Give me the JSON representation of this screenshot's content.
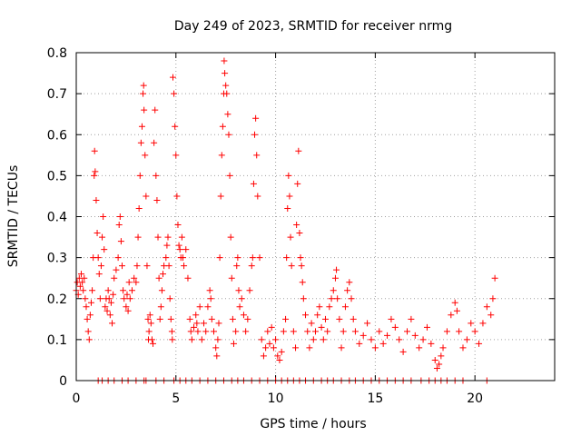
{
  "chart_data": {
    "type": "scatter",
    "title": "Day 249 of 2023, SRMTID for receiver nrmg",
    "xlabel": "GPS time / hours",
    "ylabel": "SRMTID / TECUs",
    "xlim": [
      0,
      24
    ],
    "ylim": [
      0,
      0.8
    ],
    "xticks": [
      0,
      5,
      10,
      15,
      20
    ],
    "yticks": [
      0,
      0.1,
      0.2,
      0.3,
      0.4,
      0.5,
      0.6,
      0.7,
      0.8
    ],
    "grid": true,
    "marker": "+",
    "color": "#ff0000",
    "series": [
      {
        "name": "SRMTID",
        "points": [
          [
            0.0,
            0.22
          ],
          [
            0.05,
            0.24
          ],
          [
            0.1,
            0.21
          ],
          [
            0.15,
            0.25
          ],
          [
            0.2,
            0.23
          ],
          [
            0.25,
            0.26
          ],
          [
            0.3,
            0.24
          ],
          [
            0.35,
            0.22
          ],
          [
            0.4,
            0.25
          ],
          [
            0.45,
            0.2
          ],
          [
            0.5,
            0.18
          ],
          [
            0.55,
            0.15
          ],
          [
            0.6,
            0.12
          ],
          [
            0.65,
            0.1
          ],
          [
            0.7,
            0.16
          ],
          [
            0.75,
            0.19
          ],
          [
            0.8,
            0.22
          ],
          [
            0.85,
            0.3
          ],
          [
            0.9,
            0.5
          ],
          [
            0.92,
            0.56
          ],
          [
            0.95,
            0.51
          ],
          [
            1.0,
            0.44
          ],
          [
            1.05,
            0.36
          ],
          [
            1.1,
            0.3
          ],
          [
            1.15,
            0.26
          ],
          [
            1.2,
            0.2
          ],
          [
            1.25,
            0.28
          ],
          [
            1.3,
            0.35
          ],
          [
            1.35,
            0.4
          ],
          [
            1.4,
            0.32
          ],
          [
            1.45,
            0.18
          ],
          [
            1.5,
            0.2
          ],
          [
            1.55,
            0.17
          ],
          [
            1.6,
            0.22
          ],
          [
            1.65,
            0.2
          ],
          [
            1.7,
            0.16
          ],
          [
            1.75,
            0.19
          ],
          [
            1.8,
            0.14
          ],
          [
            1.85,
            0.21
          ],
          [
            1.9,
            0.25
          ],
          [
            2.0,
            0.27
          ],
          [
            2.1,
            0.3
          ],
          [
            2.15,
            0.38
          ],
          [
            2.2,
            0.4
          ],
          [
            2.25,
            0.34
          ],
          [
            2.3,
            0.28
          ],
          [
            2.35,
            0.22
          ],
          [
            2.4,
            0.2
          ],
          [
            2.5,
            0.18
          ],
          [
            2.55,
            0.21
          ],
          [
            2.6,
            0.17
          ],
          [
            2.65,
            0.24
          ],
          [
            2.7,
            0.2
          ],
          [
            2.8,
            0.22
          ],
          [
            2.9,
            0.25
          ],
          [
            3.0,
            0.24
          ],
          [
            3.05,
            0.28
          ],
          [
            3.1,
            0.35
          ],
          [
            3.15,
            0.42
          ],
          [
            3.2,
            0.5
          ],
          [
            3.25,
            0.58
          ],
          [
            3.3,
            0.62
          ],
          [
            3.35,
            0.7
          ],
          [
            3.38,
            0.72
          ],
          [
            3.4,
            0.66
          ],
          [
            3.45,
            0.55
          ],
          [
            3.5,
            0.45
          ],
          [
            3.55,
            0.28
          ],
          [
            3.6,
            0.15
          ],
          [
            3.62,
            0.1
          ],
          [
            3.65,
            0.12
          ],
          [
            3.7,
            0.16
          ],
          [
            3.75,
            0.14
          ],
          [
            3.8,
            0.1
          ],
          [
            3.85,
            0.09
          ],
          [
            3.9,
            0.58
          ],
          [
            3.95,
            0.66
          ],
          [
            4.0,
            0.5
          ],
          [
            4.05,
            0.44
          ],
          [
            4.1,
            0.35
          ],
          [
            4.15,
            0.25
          ],
          [
            4.2,
            0.15
          ],
          [
            4.25,
            0.18
          ],
          [
            4.3,
            0.22
          ],
          [
            4.35,
            0.26
          ],
          [
            4.4,
            0.28
          ],
          [
            4.5,
            0.3
          ],
          [
            4.55,
            0.33
          ],
          [
            4.6,
            0.35
          ],
          [
            4.65,
            0.28
          ],
          [
            4.7,
            0.2
          ],
          [
            4.75,
            0.15
          ],
          [
            4.8,
            0.12
          ],
          [
            4.82,
            0.1
          ],
          [
            4.85,
            0.74
          ],
          [
            4.9,
            0.7
          ],
          [
            4.95,
            0.62
          ],
          [
            5.0,
            0.55
          ],
          [
            5.05,
            0.45
          ],
          [
            5.1,
            0.38
          ],
          [
            5.15,
            0.33
          ],
          [
            5.2,
            0.32
          ],
          [
            5.25,
            0.3
          ],
          [
            5.3,
            0.35
          ],
          [
            5.35,
            0.3
          ],
          [
            5.4,
            0.28
          ],
          [
            5.5,
            0.32
          ],
          [
            5.6,
            0.25
          ],
          [
            5.7,
            0.15
          ],
          [
            5.75,
            0.12
          ],
          [
            5.8,
            0.1
          ],
          [
            5.9,
            0.13
          ],
          [
            6.0,
            0.16
          ],
          [
            6.05,
            0.14
          ],
          [
            6.1,
            0.12
          ],
          [
            6.2,
            0.18
          ],
          [
            6.3,
            0.1
          ],
          [
            6.4,
            0.14
          ],
          [
            6.5,
            0.12
          ],
          [
            6.6,
            0.18
          ],
          [
            6.7,
            0.22
          ],
          [
            6.75,
            0.2
          ],
          [
            6.8,
            0.15
          ],
          [
            6.9,
            0.12
          ],
          [
            7.0,
            0.08
          ],
          [
            7.05,
            0.06
          ],
          [
            7.1,
            0.1
          ],
          [
            7.15,
            0.14
          ],
          [
            7.2,
            0.3
          ],
          [
            7.25,
            0.45
          ],
          [
            7.3,
            0.55
          ],
          [
            7.35,
            0.62
          ],
          [
            7.4,
            0.7
          ],
          [
            7.42,
            0.78
          ],
          [
            7.45,
            0.75
          ],
          [
            7.5,
            0.72
          ],
          [
            7.55,
            0.7
          ],
          [
            7.6,
            0.65
          ],
          [
            7.65,
            0.6
          ],
          [
            7.7,
            0.5
          ],
          [
            7.75,
            0.35
          ],
          [
            7.8,
            0.25
          ],
          [
            7.85,
            0.15
          ],
          [
            7.9,
            0.09
          ],
          [
            8.0,
            0.12
          ],
          [
            8.05,
            0.28
          ],
          [
            8.1,
            0.3
          ],
          [
            8.15,
            0.22
          ],
          [
            8.2,
            0.18
          ],
          [
            8.3,
            0.2
          ],
          [
            8.4,
            0.16
          ],
          [
            8.5,
            0.12
          ],
          [
            8.6,
            0.15
          ],
          [
            8.7,
            0.22
          ],
          [
            8.8,
            0.28
          ],
          [
            8.85,
            0.3
          ],
          [
            8.9,
            0.48
          ],
          [
            8.95,
            0.6
          ],
          [
            9.0,
            0.64
          ],
          [
            9.05,
            0.55
          ],
          [
            9.1,
            0.45
          ],
          [
            9.2,
            0.3
          ],
          [
            9.3,
            0.1
          ],
          [
            9.4,
            0.06
          ],
          [
            9.5,
            0.08
          ],
          [
            9.6,
            0.12
          ],
          [
            9.7,
            0.09
          ],
          [
            9.8,
            0.13
          ],
          [
            9.9,
            0.08
          ],
          [
            10.0,
            0.1
          ],
          [
            10.1,
            0.06
          ],
          [
            10.2,
            0.05
          ],
          [
            10.3,
            0.07
          ],
          [
            10.4,
            0.12
          ],
          [
            10.5,
            0.15
          ],
          [
            10.55,
            0.3
          ],
          [
            10.6,
            0.42
          ],
          [
            10.65,
            0.5
          ],
          [
            10.7,
            0.45
          ],
          [
            10.75,
            0.35
          ],
          [
            10.8,
            0.28
          ],
          [
            10.9,
            0.12
          ],
          [
            11.0,
            0.08
          ],
          [
            11.05,
            0.38
          ],
          [
            11.1,
            0.48
          ],
          [
            11.15,
            0.56
          ],
          [
            11.2,
            0.36
          ],
          [
            11.25,
            0.3
          ],
          [
            11.3,
            0.28
          ],
          [
            11.35,
            0.24
          ],
          [
            11.4,
            0.2
          ],
          [
            11.5,
            0.16
          ],
          [
            11.6,
            0.12
          ],
          [
            11.7,
            0.08
          ],
          [
            11.8,
            0.14
          ],
          [
            11.9,
            0.1
          ],
          [
            12.0,
            0.12
          ],
          [
            12.1,
            0.16
          ],
          [
            12.2,
            0.18
          ],
          [
            12.3,
            0.13
          ],
          [
            12.4,
            0.1
          ],
          [
            12.5,
            0.15
          ],
          [
            12.6,
            0.12
          ],
          [
            12.7,
            0.18
          ],
          [
            12.8,
            0.2
          ],
          [
            12.9,
            0.22
          ],
          [
            13.0,
            0.25
          ],
          [
            13.05,
            0.27
          ],
          [
            13.1,
            0.2
          ],
          [
            13.2,
            0.15
          ],
          [
            13.3,
            0.08
          ],
          [
            13.4,
            0.12
          ],
          [
            13.5,
            0.18
          ],
          [
            13.6,
            0.22
          ],
          [
            13.7,
            0.24
          ],
          [
            13.8,
            0.2
          ],
          [
            13.9,
            0.15
          ],
          [
            14.0,
            0.12
          ],
          [
            14.2,
            0.09
          ],
          [
            14.4,
            0.11
          ],
          [
            14.6,
            0.14
          ],
          [
            14.8,
            0.1
          ],
          [
            15.0,
            0.08
          ],
          [
            15.2,
            0.12
          ],
          [
            15.4,
            0.09
          ],
          [
            15.6,
            0.11
          ],
          [
            15.8,
            0.15
          ],
          [
            16.0,
            0.13
          ],
          [
            16.2,
            0.1
          ],
          [
            16.4,
            0.07
          ],
          [
            16.6,
            0.12
          ],
          [
            16.8,
            0.15
          ],
          [
            17.0,
            0.11
          ],
          [
            17.2,
            0.08
          ],
          [
            17.4,
            0.1
          ],
          [
            17.6,
            0.13
          ],
          [
            17.8,
            0.09
          ],
          [
            18.0,
            0.05
          ],
          [
            18.1,
            0.03
          ],
          [
            18.2,
            0.04
          ],
          [
            18.3,
            0.06
          ],
          [
            18.4,
            0.08
          ],
          [
            18.6,
            0.12
          ],
          [
            18.8,
            0.16
          ],
          [
            19.0,
            0.19
          ],
          [
            19.1,
            0.17
          ],
          [
            19.2,
            0.12
          ],
          [
            19.4,
            0.08
          ],
          [
            19.6,
            0.1
          ],
          [
            19.8,
            0.14
          ],
          [
            20.0,
            0.12
          ],
          [
            20.2,
            0.09
          ],
          [
            20.4,
            0.14
          ],
          [
            20.6,
            0.18
          ],
          [
            20.8,
            0.16
          ],
          [
            20.9,
            0.2
          ],
          [
            21.0,
            0.25
          ]
        ]
      }
    ],
    "zero_points_x": [
      1.1,
      1.3,
      1.6,
      1.9,
      2.3,
      2.6,
      3.0,
      3.4,
      3.5,
      4.0,
      4.4,
      4.9,
      5.2,
      5.5,
      5.8,
      6.2,
      6.6,
      7.0,
      7.4,
      7.8,
      8.1,
      8.4,
      8.8,
      9.2,
      9.6,
      10.0,
      10.3,
      10.6,
      10.9,
      11.2,
      11.5,
      11.9,
      12.3,
      12.6,
      12.9,
      13.3,
      13.7,
      14.0,
      14.4,
      14.8,
      15.2,
      15.6,
      16.0,
      16.4,
      16.8,
      17.3,
      17.7,
      18.0,
      18.3,
      18.6,
      19.0,
      19.4,
      20.6
    ]
  }
}
